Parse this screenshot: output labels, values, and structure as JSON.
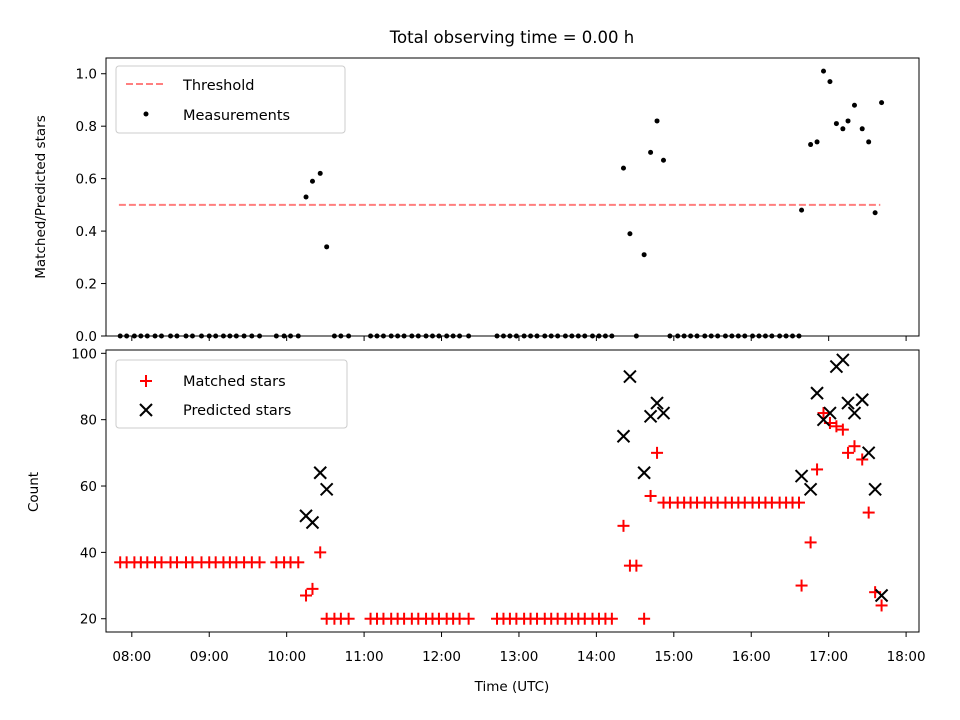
{
  "chart_data": [
    {
      "type": "scatter",
      "title": "Total observing time = 0.00 h",
      "ylabel": "Matched/Predicted stars",
      "xlabel": "",
      "xlim": [
        "07:40",
        "18:10"
      ],
      "ylim": [
        0,
        1.06
      ],
      "yticks": [
        "0.0",
        "0.2",
        "0.4",
        "0.6",
        "0.8",
        "1.0"
      ],
      "legend_position": "top-left",
      "threshold": {
        "name": "Threshold",
        "value": 0.5,
        "x_range": [
          "07:50",
          "17:40"
        ],
        "color": "#ff7f7f",
        "style": "dashed"
      },
      "series": [
        {
          "name": "Measurements",
          "color": "#000000",
          "marker": "dot",
          "points": [
            [
              "07:51",
              0
            ],
            [
              "07:56",
              0
            ],
            [
              "08:02",
              0
            ],
            [
              "08:07",
              0
            ],
            [
              "08:12",
              0
            ],
            [
              "08:18",
              0
            ],
            [
              "08:23",
              0
            ],
            [
              "08:30",
              0
            ],
            [
              "08:35",
              0
            ],
            [
              "08:42",
              0
            ],
            [
              "08:47",
              0
            ],
            [
              "08:54",
              0
            ],
            [
              "09:00",
              0
            ],
            [
              "09:05",
              0
            ],
            [
              "09:11",
              0
            ],
            [
              "09:16",
              0
            ],
            [
              "09:21",
              0
            ],
            [
              "09:27",
              0
            ],
            [
              "09:33",
              0
            ],
            [
              "09:39",
              0
            ],
            [
              "09:52",
              0
            ],
            [
              "09:58",
              0
            ],
            [
              "10:03",
              0
            ],
            [
              "10:09",
              0
            ],
            [
              "10:15",
              0.53
            ],
            [
              "10:20",
              0.59
            ],
            [
              "10:26",
              0.62
            ],
            [
              "10:31",
              0.34
            ],
            [
              "10:37",
              0
            ],
            [
              "10:42",
              0
            ],
            [
              "10:48",
              0
            ],
            [
              "11:05",
              0
            ],
            [
              "11:10",
              0
            ],
            [
              "11:15",
              0
            ],
            [
              "11:21",
              0
            ],
            [
              "11:26",
              0
            ],
            [
              "11:31",
              0
            ],
            [
              "11:37",
              0
            ],
            [
              "11:42",
              0
            ],
            [
              "11:48",
              0
            ],
            [
              "11:53",
              0
            ],
            [
              "11:58",
              0
            ],
            [
              "12:04",
              0
            ],
            [
              "12:09",
              0
            ],
            [
              "12:14",
              0
            ],
            [
              "12:21",
              0
            ],
            [
              "12:43",
              0
            ],
            [
              "12:48",
              0
            ],
            [
              "12:53",
              0
            ],
            [
              "12:58",
              0
            ],
            [
              "13:04",
              0
            ],
            [
              "13:09",
              0
            ],
            [
              "13:14",
              0
            ],
            [
              "13:20",
              0
            ],
            [
              "13:25",
              0
            ],
            [
              "13:30",
              0
            ],
            [
              "13:36",
              0
            ],
            [
              "13:41",
              0
            ],
            [
              "13:46",
              0
            ],
            [
              "13:51",
              0
            ],
            [
              "13:57",
              0
            ],
            [
              "14:02",
              0
            ],
            [
              "14:07",
              0
            ],
            [
              "14:12",
              0
            ],
            [
              "14:21",
              0.64
            ],
            [
              "14:26",
              0.39
            ],
            [
              "14:31",
              0
            ],
            [
              "14:37",
              0.31
            ],
            [
              "14:42",
              0.7
            ],
            [
              "14:47",
              0.82
            ],
            [
              "14:52",
              0.67
            ],
            [
              "14:57",
              0
            ],
            [
              "15:03",
              0
            ],
            [
              "15:08",
              0
            ],
            [
              "15:13",
              0
            ],
            [
              "15:18",
              0
            ],
            [
              "15:24",
              0
            ],
            [
              "15:29",
              0
            ],
            [
              "15:34",
              0
            ],
            [
              "15:40",
              0
            ],
            [
              "15:45",
              0
            ],
            [
              "15:50",
              0
            ],
            [
              "15:55",
              0
            ],
            [
              "16:01",
              0
            ],
            [
              "16:06",
              0
            ],
            [
              "16:11",
              0
            ],
            [
              "16:16",
              0
            ],
            [
              "16:22",
              0
            ],
            [
              "16:27",
              0
            ],
            [
              "16:32",
              0
            ],
            [
              "16:37",
              0
            ],
            [
              "16:39",
              0.48
            ],
            [
              "16:46",
              0.73
            ],
            [
              "16:51",
              0.74
            ],
            [
              "16:56",
              1.01
            ],
            [
              "17:01",
              0.97
            ],
            [
              "17:06",
              0.81
            ],
            [
              "17:11",
              0.79
            ],
            [
              "17:15",
              0.82
            ],
            [
              "17:20",
              0.88
            ],
            [
              "17:26",
              0.79
            ],
            [
              "17:31",
              0.74
            ],
            [
              "17:36",
              0.47
            ],
            [
              "17:41",
              0.89
            ]
          ]
        }
      ]
    },
    {
      "type": "scatter",
      "title": "",
      "xlabel": "Time (UTC)",
      "ylabel": "Count",
      "xlim": [
        "07:40",
        "18:10"
      ],
      "ylim": [
        16,
        101
      ],
      "xticks": [
        "08:00",
        "09:00",
        "10:00",
        "11:00",
        "12:00",
        "13:00",
        "14:00",
        "15:00",
        "16:00",
        "17:00",
        "18:00"
      ],
      "yticks": [
        "20",
        "40",
        "60",
        "80",
        "100"
      ],
      "legend_position": "top-left",
      "series": [
        {
          "name": "Matched stars",
          "color": "#ff0000",
          "marker": "plus",
          "points": [
            [
              "07:51",
              37
            ],
            [
              "07:56",
              37
            ],
            [
              "08:02",
              37
            ],
            [
              "08:07",
              37
            ],
            [
              "08:12",
              37
            ],
            [
              "08:18",
              37
            ],
            [
              "08:23",
              37
            ],
            [
              "08:30",
              37
            ],
            [
              "08:35",
              37
            ],
            [
              "08:42",
              37
            ],
            [
              "08:47",
              37
            ],
            [
              "08:54",
              37
            ],
            [
              "09:00",
              37
            ],
            [
              "09:05",
              37
            ],
            [
              "09:11",
              37
            ],
            [
              "09:16",
              37
            ],
            [
              "09:21",
              37
            ],
            [
              "09:27",
              37
            ],
            [
              "09:33",
              37
            ],
            [
              "09:39",
              37
            ],
            [
              "09:52",
              37
            ],
            [
              "09:58",
              37
            ],
            [
              "10:03",
              37
            ],
            [
              "10:09",
              37
            ],
            [
              "10:15",
              27
            ],
            [
              "10:20",
              29
            ],
            [
              "10:26",
              40
            ],
            [
              "10:31",
              20
            ],
            [
              "10:37",
              20
            ],
            [
              "10:42",
              20
            ],
            [
              "10:48",
              20
            ],
            [
              "11:05",
              20
            ],
            [
              "11:10",
              20
            ],
            [
              "11:15",
              20
            ],
            [
              "11:21",
              20
            ],
            [
              "11:26",
              20
            ],
            [
              "11:31",
              20
            ],
            [
              "11:37",
              20
            ],
            [
              "11:42",
              20
            ],
            [
              "11:48",
              20
            ],
            [
              "11:53",
              20
            ],
            [
              "11:58",
              20
            ],
            [
              "12:04",
              20
            ],
            [
              "12:09",
              20
            ],
            [
              "12:14",
              20
            ],
            [
              "12:21",
              20
            ],
            [
              "12:43",
              20
            ],
            [
              "12:48",
              20
            ],
            [
              "12:53",
              20
            ],
            [
              "12:58",
              20
            ],
            [
              "13:04",
              20
            ],
            [
              "13:09",
              20
            ],
            [
              "13:14",
              20
            ],
            [
              "13:20",
              20
            ],
            [
              "13:25",
              20
            ],
            [
              "13:30",
              20
            ],
            [
              "13:36",
              20
            ],
            [
              "13:41",
              20
            ],
            [
              "13:46",
              20
            ],
            [
              "13:51",
              20
            ],
            [
              "13:57",
              20
            ],
            [
              "14:02",
              20
            ],
            [
              "14:07",
              20
            ],
            [
              "14:12",
              20
            ],
            [
              "14:21",
              48
            ],
            [
              "14:26",
              36
            ],
            [
              "14:31",
              36
            ],
            [
              "14:37",
              20
            ],
            [
              "14:42",
              57
            ],
            [
              "14:47",
              70
            ],
            [
              "14:52",
              55
            ],
            [
              "14:57",
              55
            ],
            [
              "15:03",
              55
            ],
            [
              "15:08",
              55
            ],
            [
              "15:13",
              55
            ],
            [
              "15:18",
              55
            ],
            [
              "15:24",
              55
            ],
            [
              "15:29",
              55
            ],
            [
              "15:34",
              55
            ],
            [
              "15:40",
              55
            ],
            [
              "15:45",
              55
            ],
            [
              "15:50",
              55
            ],
            [
              "15:55",
              55
            ],
            [
              "16:01",
              55
            ],
            [
              "16:06",
              55
            ],
            [
              "16:11",
              55
            ],
            [
              "16:16",
              55
            ],
            [
              "16:22",
              55
            ],
            [
              "16:27",
              55
            ],
            [
              "16:32",
              55
            ],
            [
              "16:37",
              55
            ],
            [
              "16:39",
              30
            ],
            [
              "16:46",
              43
            ],
            [
              "16:51",
              65
            ],
            [
              "16:56",
              82
            ],
            [
              "17:01",
              79
            ],
            [
              "17:06",
              78
            ],
            [
              "17:11",
              77
            ],
            [
              "17:15",
              70
            ],
            [
              "17:20",
              72
            ],
            [
              "17:26",
              68
            ],
            [
              "17:31",
              52
            ],
            [
              "17:36",
              28
            ],
            [
              "17:41",
              24
            ]
          ]
        },
        {
          "name": "Predicted stars",
          "color": "#000000",
          "marker": "x",
          "points": [
            [
              "10:15",
              51
            ],
            [
              "10:20",
              49
            ],
            [
              "10:26",
              64
            ],
            [
              "10:31",
              59
            ],
            [
              "14:21",
              75
            ],
            [
              "14:26",
              93
            ],
            [
              "14:37",
              64
            ],
            [
              "14:42",
              81
            ],
            [
              "14:47",
              85
            ],
            [
              "14:52",
              82
            ],
            [
              "16:39",
              63
            ],
            [
              "16:46",
              59
            ],
            [
              "16:51",
              88
            ],
            [
              "16:56",
              80
            ],
            [
              "17:01",
              82
            ],
            [
              "17:06",
              96
            ],
            [
              "17:11",
              98
            ],
            [
              "17:15",
              85
            ],
            [
              "17:20",
              82
            ],
            [
              "17:26",
              86
            ],
            [
              "17:31",
              70
            ],
            [
              "17:36",
              59
            ],
            [
              "17:41",
              27
            ]
          ]
        }
      ]
    }
  ]
}
